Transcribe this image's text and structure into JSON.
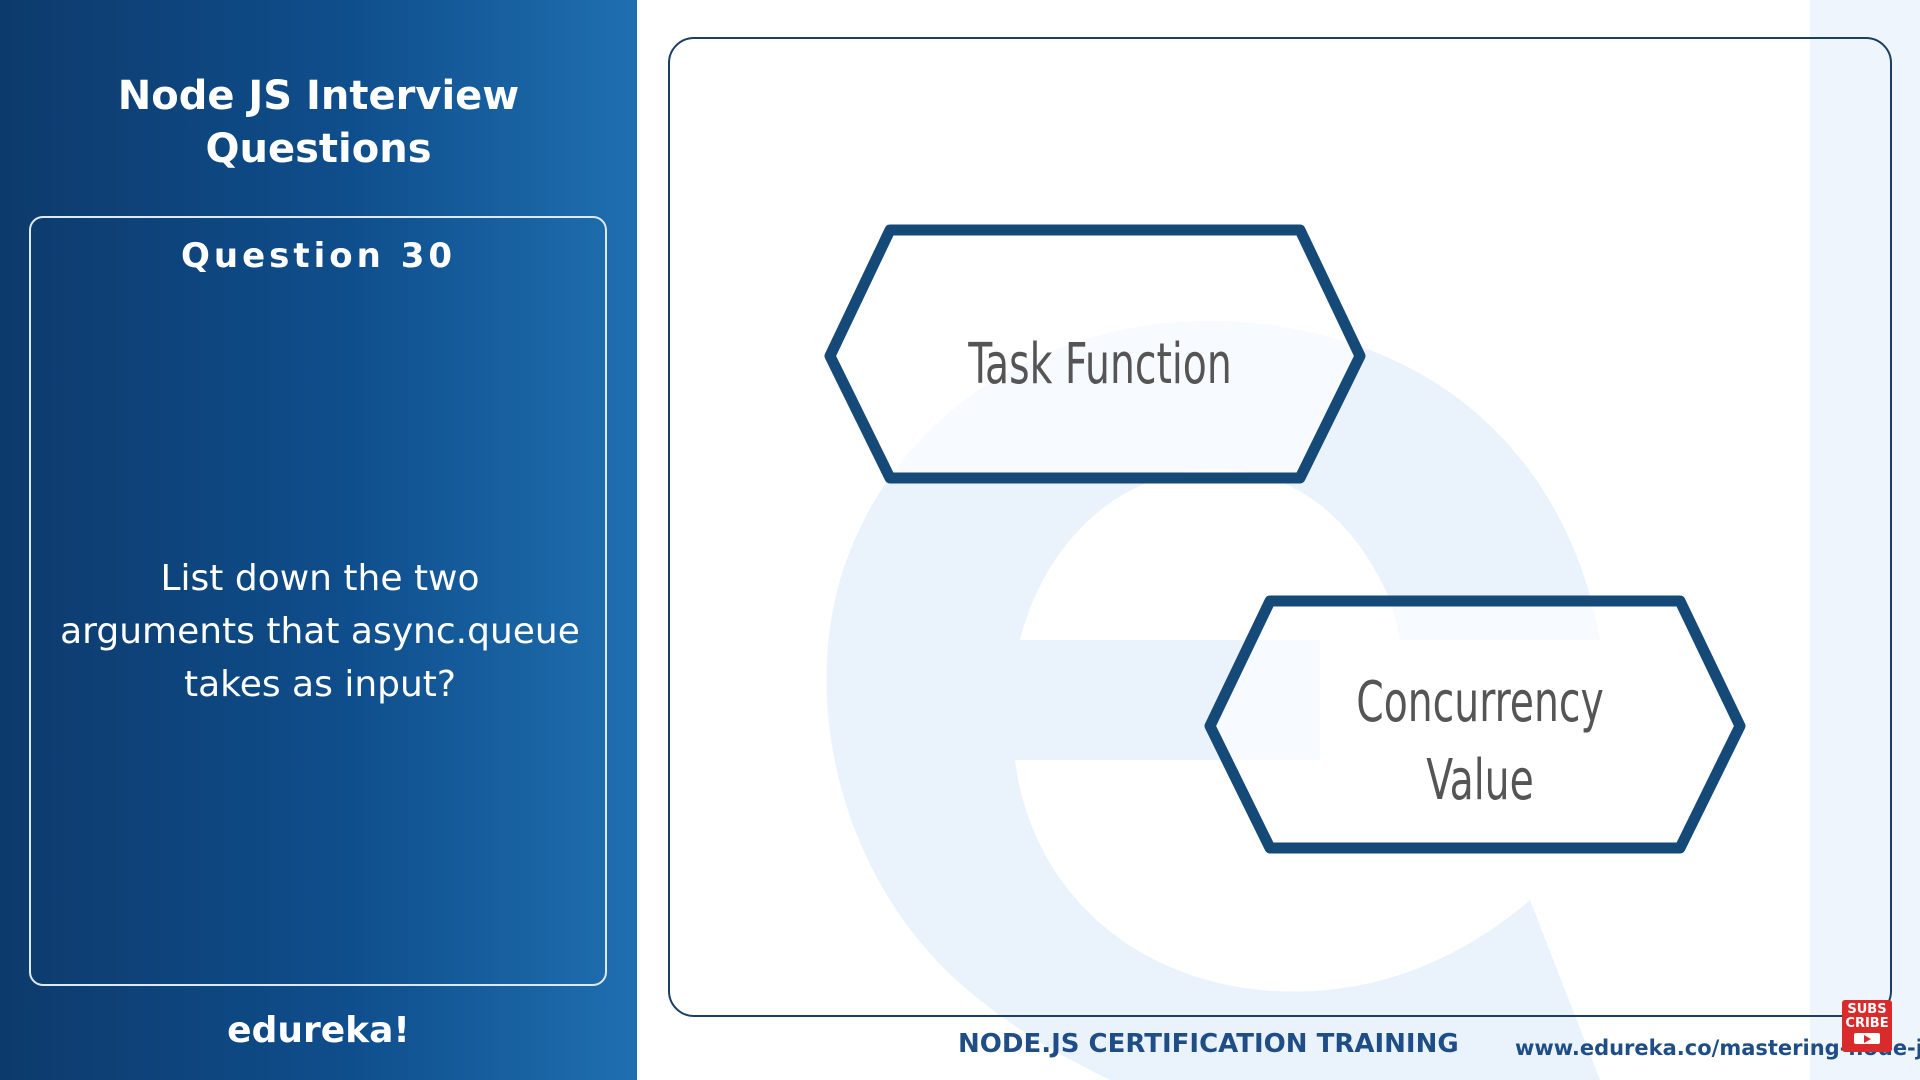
{
  "left_panel": {
    "title_line1": "Node JS Interview",
    "title_line2": "Questions",
    "question_number": "Question 30",
    "question_line1": "List down the two",
    "question_line2": "arguments that async.queue",
    "question_line3": "takes as input?",
    "brand": "edureka!"
  },
  "diagram": {
    "node1_label": "Task Function",
    "node2_line1": "Concurrency",
    "node2_line2": "Value"
  },
  "footer": {
    "course": "NODE.JS CERTIFICATION TRAINING",
    "url": "www.edureka.co/mastering-node-js",
    "subscribe_line1": "SUBS",
    "subscribe_line2": "CRIBE"
  },
  "colors": {
    "panel_dark": "#0d3a6c",
    "panel_light": "#1f6fb0",
    "hexagon_stroke": "#154a78",
    "footer_text": "#1f4e86",
    "subscribe_red": "#d92b2b"
  },
  "icons": {
    "watermark": "edureka-e-watermark",
    "subscribe": "subscribe-play-icon"
  }
}
